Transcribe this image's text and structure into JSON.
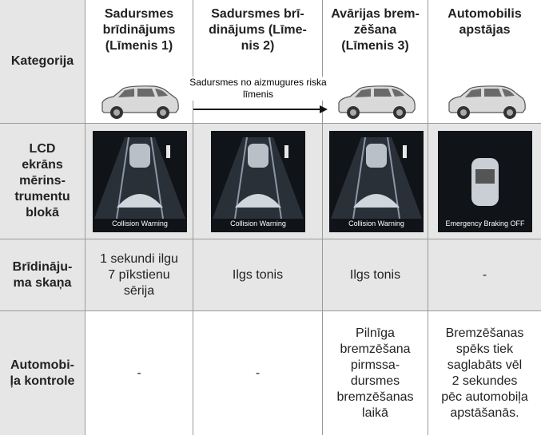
{
  "table": {
    "header": [
      "Kategorija",
      "Sadursmes\nbrīdinājums\n(Līmenis 1)",
      "Sadursmes brī-\ndinājums (Līme-\nnis 2)",
      "Avārijas brem-\nzēšana\n(Līmenis 3)",
      "Automobilis\napstājas"
    ],
    "arrow_label": "Sadursmes no aizmugures riska\nlīmenis",
    "rows": [
      {
        "label": "LCD\nekrāns\nmērins-\ntrumentu\nblokā",
        "cells": [
          "Collision Warning",
          "Collision Warning",
          "Collision Warning",
          "Emergency Braking OFF"
        ]
      },
      {
        "label": "Brīdināju-\nma skaņa",
        "cells": [
          "1 sekundi ilgu\n7 pīkstienu\nsērija",
          "Ilgs tonis",
          "Ilgs tonis",
          "-"
        ]
      },
      {
        "label": "Automobi-\nļa kontrole",
        "cells": [
          "-",
          "-",
          "Pilnīga\nbremzēšana\npirmssa-\ndursmes\nbremzēšanas\nlaikā",
          "Bremzēšanas\nspēks tiek\nsaglabāts vēl\n2 sekundes\npēc automobiļa\napstāšanās."
        ]
      }
    ]
  }
}
